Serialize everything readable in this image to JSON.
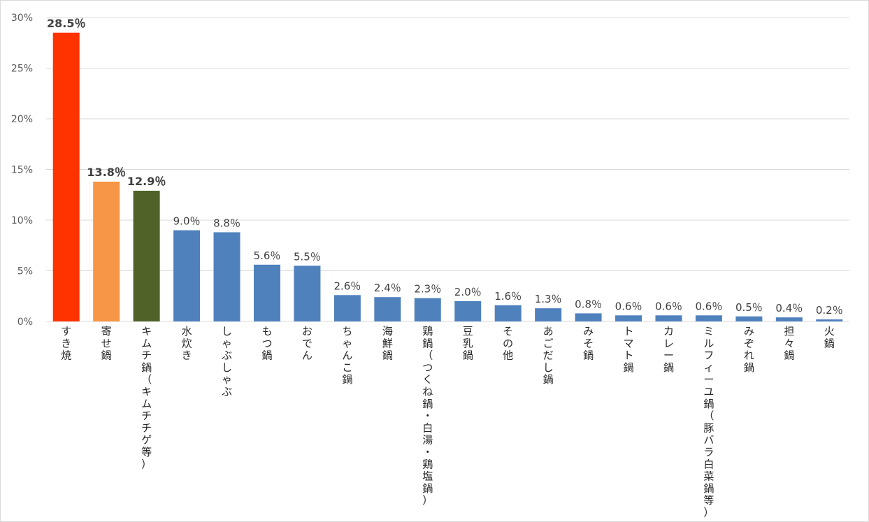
{
  "chart_data": {
    "type": "bar",
    "categories": [
      "すき焼",
      "寄せ鍋",
      "キムチ鍋（キムチチゲ等）",
      "水炊き",
      "しゃぶしゃぶ",
      "もつ鍋",
      "おでん",
      "ちゃんこ鍋",
      "海鮮鍋",
      "鶏鍋（つくね鍋・白湯・鶏塩鍋）",
      "豆乳鍋",
      "その他",
      "あごだし鍋",
      "みそ鍋",
      "トマト鍋",
      "カレー鍋",
      "ミルフィーユ鍋（豚バラ白菜鍋等）",
      "みぞれ鍋",
      "担々鍋",
      "火鍋"
    ],
    "values": [
      28.5,
      13.8,
      12.9,
      9.0,
      8.8,
      5.6,
      5.5,
      2.6,
      2.4,
      2.3,
      2.0,
      1.6,
      1.3,
      0.8,
      0.6,
      0.6,
      0.6,
      0.5,
      0.4,
      0.2
    ],
    "data_labels": [
      "28.5％",
      "13.8％",
      "12.9％",
      "9.0％",
      "8.8％",
      "5.6％",
      "5.5％",
      "2.6％",
      "2.4％",
      "2.3％",
      "2.0％",
      "1.6％",
      "1.3％",
      "0.8％",
      "0.6％",
      "0.6％",
      "0.6％",
      "0.5％",
      "0.4％",
      "0.2％"
    ],
    "bold_labels": [
      true,
      true,
      true,
      false,
      false,
      false,
      false,
      false,
      false,
      false,
      false,
      false,
      false,
      false,
      false,
      false,
      false,
      false,
      false,
      false
    ],
    "colors": [
      "#ff3300",
      "#f79646",
      "#4f6228",
      "#4f81bd",
      "#4f81bd",
      "#4f81bd",
      "#4f81bd",
      "#4f81bd",
      "#4f81bd",
      "#4f81bd",
      "#4f81bd",
      "#4f81bd",
      "#4f81bd",
      "#4f81bd",
      "#4f81bd",
      "#4f81bd",
      "#4f81bd",
      "#4f81bd",
      "#4f81bd",
      "#4f81bd"
    ],
    "yticks": [
      0,
      5,
      10,
      15,
      20,
      25,
      30
    ],
    "ytick_labels": [
      "0%",
      "5%",
      "10%",
      "15%",
      "20%",
      "25%",
      "30%"
    ],
    "ylim": [
      0,
      30
    ],
    "grid": true,
    "gridline_color": "#d9d9d9",
    "title": "",
    "xlabel": "",
    "ylabel": ""
  }
}
